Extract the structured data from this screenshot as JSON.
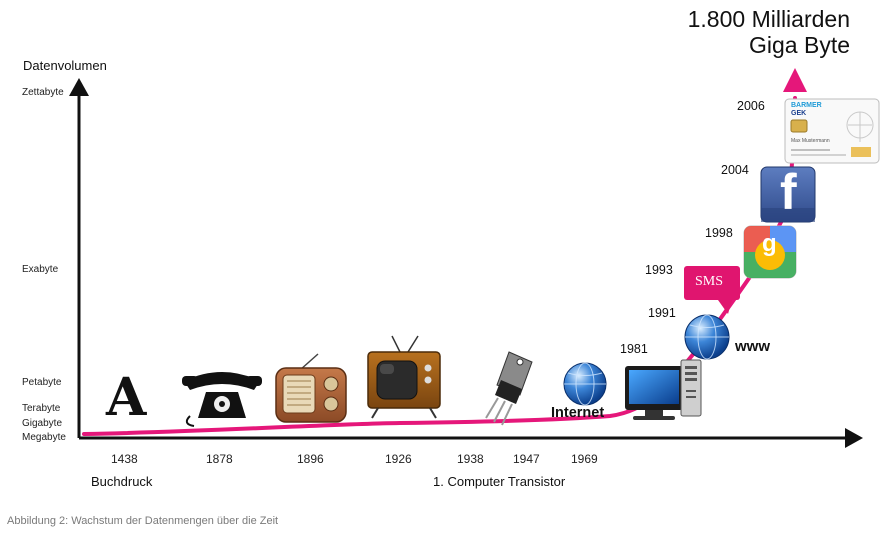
{
  "title": {
    "line1": "1.800 Milliarden",
    "line2": "Giga Byte"
  },
  "y_axis": {
    "title": "Datenvolumen",
    "levels": [
      "Zettabyte",
      "Exabyte",
      "Petabyte",
      "Terabyte",
      "Gigabyte",
      "Megabyte"
    ]
  },
  "x_axis": {
    "years": [
      "1438",
      "1878",
      "1896",
      "1926",
      "1938",
      "1947",
      "1969"
    ],
    "notes": {
      "buchdruck": "Buchdruck",
      "transistor": "1. Computer Transistor"
    }
  },
  "milestones": {
    "y1981": "1981",
    "y1991": "1991",
    "y1993": "1993",
    "y1998": "1998",
    "y2004": "2004",
    "y2006": "2006"
  },
  "item_labels": {
    "letter": "A",
    "internet": "Internet",
    "www": "www",
    "sms": "SMS",
    "facebook": "f",
    "google": "g"
  },
  "card": {
    "brand1": "BARMER",
    "brand2": "GEK",
    "holder": "Max Mustermann"
  },
  "caption": "Abbildung 2: Wachstum der Datenmengen über die Zeit",
  "colors": {
    "curve": "#e5177a",
    "axis": "#111111",
    "sms": "#e0156f",
    "facebook": "#3b5998"
  }
}
